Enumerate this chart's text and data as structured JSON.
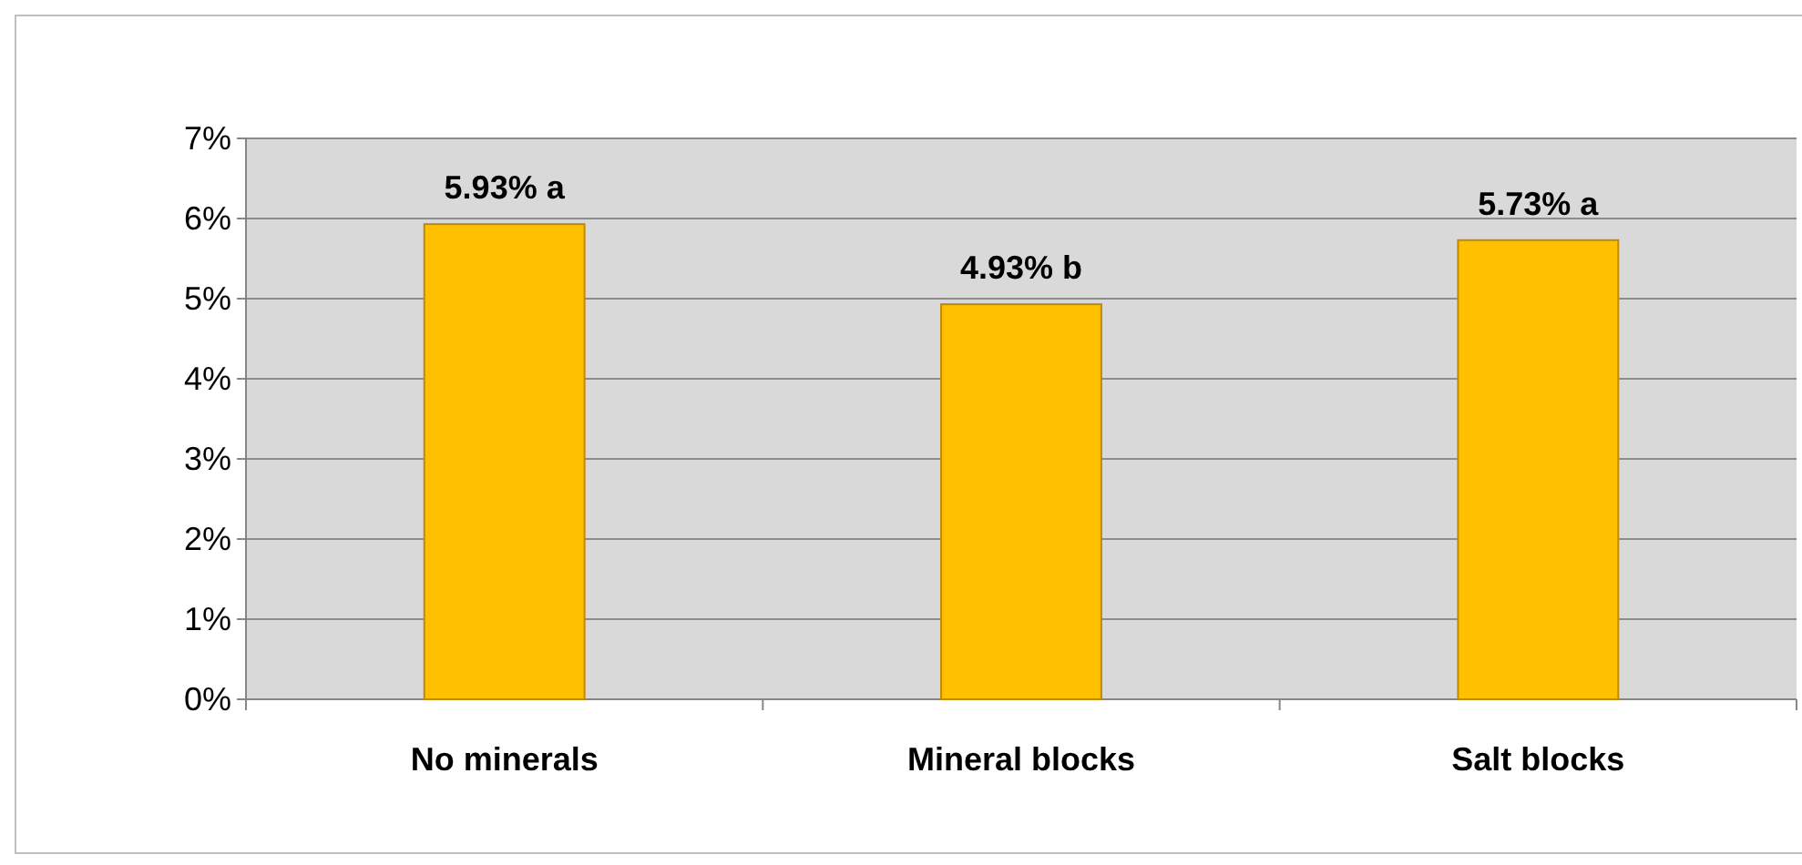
{
  "chart_data": {
    "type": "bar",
    "categories": [
      "No minerals",
      "Mineral blocks",
      "Salt blocks"
    ],
    "values": [
      5.93,
      4.93,
      5.73
    ],
    "color": "#ffc000",
    "value_labels": [
      "5.93% a",
      "4.93% b",
      "5.73% a"
    ],
    "ylim": [
      0,
      7
    ],
    "yticks": [
      {
        "value": 0,
        "label": "0%"
      },
      {
        "value": 1,
        "label": "1%"
      },
      {
        "value": 2,
        "label": "2%"
      },
      {
        "value": 3,
        "label": "3%"
      },
      {
        "value": 4,
        "label": "4%"
      },
      {
        "value": 5,
        "label": "5%"
      },
      {
        "value": 6,
        "label": "6%"
      },
      {
        "value": 7,
        "label": "7%"
      }
    ],
    "grid": "y"
  }
}
